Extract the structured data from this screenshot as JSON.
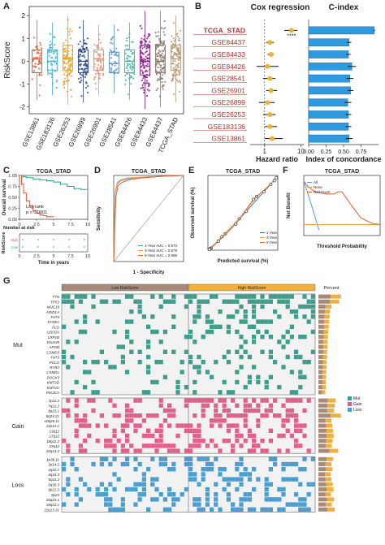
{
  "panel_labels": {
    "A": "A",
    "B": "B",
    "C": "C",
    "D": "D",
    "E": "E",
    "F": "F",
    "G": "G"
  },
  "chart_data": [
    {
      "id": "A",
      "type": "boxplot",
      "ylabel": "RiskScore",
      "ylim": [
        -2.3,
        2.4
      ],
      "yticks": [
        -2,
        -1,
        0,
        1,
        2
      ],
      "categories": [
        "GSE13861",
        "GSE183136",
        "GSE26253",
        "GSE26899",
        "GSE26901",
        "GSE28541",
        "GSE84426",
        "GSE84433",
        "GSE84437",
        "TCGA_STAD"
      ],
      "colors": [
        "#e05a3a",
        "#4bb3d0",
        "#e8a020",
        "#2e4a88",
        "#e8907a",
        "#5a8fc8",
        "#40b8a0",
        "#8b1a8b",
        "#8a7a6a",
        "#b89a7a"
      ],
      "boxes": [
        {
          "q1": -0.5,
          "median": 0.1,
          "q3": 0.5,
          "lo": -1.7,
          "hi": 1.8,
          "n": 45
        },
        {
          "q1": -0.4,
          "median": 0.0,
          "q3": 0.5,
          "lo": -1.5,
          "hi": 1.7,
          "n": 55
        },
        {
          "q1": -0.4,
          "median": 0.1,
          "q3": 0.7,
          "lo": -1.9,
          "hi": 2.0,
          "n": 90
        },
        {
          "q1": -0.5,
          "median": 0.0,
          "q3": 0.5,
          "lo": -1.8,
          "hi": 1.8,
          "n": 80
        },
        {
          "q1": -0.4,
          "median": 0.1,
          "q3": 0.5,
          "lo": -1.5,
          "hi": 1.6,
          "n": 60
        },
        {
          "q1": -0.5,
          "median": -0.1,
          "q3": 0.4,
          "lo": -1.4,
          "hi": 1.6,
          "n": 35
        },
        {
          "q1": -0.5,
          "median": 0.0,
          "q3": 0.5,
          "lo": -1.7,
          "hi": 1.7,
          "n": 55
        },
        {
          "q1": -0.6,
          "median": 0.0,
          "q3": 0.7,
          "lo": -2.1,
          "hi": 2.2,
          "n": 110
        },
        {
          "q1": -0.5,
          "median": 0.0,
          "q3": 0.7,
          "lo": -2.0,
          "hi": 2.2,
          "n": 120
        },
        {
          "q1": -0.4,
          "median": 0.1,
          "q3": 0.7,
          "lo": -1.8,
          "hi": 2.0,
          "n": 110
        }
      ]
    },
    {
      "id": "B",
      "type": "forest_and_bar",
      "left_title": "Cox regression",
      "right_title": "C-index",
      "left_xlabel": "Hazard ratio",
      "right_xlabel": "Index of concordance",
      "left_xticks": [
        "1",
        "10"
      ],
      "right_xticks": [
        "0.00",
        "0.25",
        "0.50",
        "0.75"
      ],
      "cohorts": [
        "TCGA_STAD",
        "GSE84437",
        "GSE84433",
        "GSE84426",
        "GSE28541",
        "GSE26901",
        "GSE26899",
        "GSE26253",
        "GSE183136",
        "GSE13861"
      ],
      "hazard_ratio": [
        5.5,
        1.4,
        1.5,
        1.2,
        1.4,
        1.5,
        1.2,
        1.4,
        1.4,
        1.6
      ],
      "hr_lower": [
        3.5,
        1.1,
        1.2,
        0.6,
        0.9,
        1.1,
        0.7,
        0.9,
        1.0,
        1.0
      ],
      "hr_upper": [
        8.0,
        1.8,
        1.8,
        2.4,
        2.0,
        2.2,
        1.9,
        2.0,
        2.2,
        3.2
      ],
      "significance": [
        "****",
        "",
        "",
        "",
        "",
        "",
        "",
        "",
        "",
        ""
      ],
      "cindex": [
        0.94,
        0.58,
        0.57,
        0.62,
        0.59,
        0.6,
        0.56,
        0.57,
        0.57,
        0.58
      ],
      "cindex_err": [
        0.01,
        0.03,
        0.03,
        0.06,
        0.05,
        0.04,
        0.05,
        0.04,
        0.04,
        0.05
      ]
    },
    {
      "id": "C",
      "type": "km",
      "title": "TCGA_STAD",
      "ylabel": "Overall survival",
      "xlabel": "Time in years",
      "xticks": [
        "0",
        "2.5",
        "5",
        "7.5",
        "10"
      ],
      "yticks": [
        "0.00",
        "0.25",
        "0.50",
        "0.75",
        "1.00"
      ],
      "annotation": [
        "Log-rank",
        "p < 0.0001"
      ],
      "risk_title": "Number at risk",
      "risk_ylabel": "RiskScore",
      "risk_rows": [
        "High",
        "Low"
      ],
      "series": [
        {
          "name": "Low",
          "color": "#2aa198",
          "t": [
            0,
            0.5,
            1,
            2,
            3,
            4,
            5,
            6,
            7,
            8,
            9,
            10
          ],
          "s": [
            1.0,
            0.97,
            0.95,
            0.92,
            0.9,
            0.88,
            0.85,
            0.8,
            0.75,
            0.7,
            0.68,
            0.66
          ]
        },
        {
          "name": "High",
          "color": "#e05a3a",
          "t": [
            0,
            0.3,
            0.6,
            1,
            1.5,
            2,
            2.5,
            3,
            3.5,
            4,
            5
          ],
          "s": [
            1.0,
            0.8,
            0.6,
            0.42,
            0.3,
            0.2,
            0.14,
            0.1,
            0.08,
            0.06,
            0.05
          ]
        }
      ]
    },
    {
      "id": "D",
      "type": "roc",
      "title": "TCGA_STAD",
      "xlabel": "1 - Specificity",
      "ylabel": "Sensitivity",
      "legend": [
        "1-Year AUC = 0.973",
        "3-Year AUC = 0.979",
        "5-Year AUC = 0.966"
      ],
      "colors": [
        "#4a9fd4",
        "#f0a040",
        "#e06030"
      ],
      "series": [
        {
          "fpr": [
            0,
            0.02,
            0.05,
            0.1,
            0.2,
            0.4,
            0.7,
            1.0
          ],
          "tpr": [
            0,
            0.78,
            0.9,
            0.94,
            0.96,
            0.98,
            0.99,
            1.0
          ]
        },
        {
          "fpr": [
            0,
            0.02,
            0.05,
            0.1,
            0.2,
            0.4,
            0.7,
            1.0
          ],
          "tpr": [
            0,
            0.8,
            0.92,
            0.95,
            0.97,
            0.98,
            0.99,
            1.0
          ]
        },
        {
          "fpr": [
            0,
            0.03,
            0.06,
            0.12,
            0.22,
            0.4,
            0.7,
            1.0
          ],
          "tpr": [
            0,
            0.74,
            0.88,
            0.92,
            0.95,
            0.97,
            0.99,
            1.0
          ]
        }
      ]
    },
    {
      "id": "E",
      "type": "calibration",
      "title": "TCGA_STAD",
      "xlabel": "Predicted survival (%)",
      "ylabel": "Observed survival (%)",
      "legend": [
        "1-Year",
        "3-Year",
        "5-Year"
      ],
      "colors": [
        "#2e6fb0",
        "#e8a040",
        "#e06030"
      ],
      "series": [
        {
          "x": [
            0.05,
            0.25,
            0.55,
            0.8,
            0.98
          ],
          "y": [
            0.03,
            0.22,
            0.52,
            0.78,
            0.97
          ]
        },
        {
          "x": [
            0.03,
            0.2,
            0.45,
            0.7,
            0.95
          ],
          "y": [
            0.02,
            0.18,
            0.42,
            0.72,
            0.93
          ]
        },
        {
          "x": [
            0.02,
            0.15,
            0.4,
            0.65,
            0.9
          ],
          "y": [
            0.01,
            0.12,
            0.35,
            0.68,
            0.88
          ]
        }
      ]
    },
    {
      "id": "F",
      "type": "dca",
      "title": "TCGA_STAD",
      "xlabel": "Threshold Probability",
      "ylabel": "Net Benefit",
      "legend": [
        "All",
        "None",
        "RiskScore"
      ],
      "colors": [
        "#4a9fd4",
        "#f0a040",
        "#e06030"
      ],
      "series": [
        {
          "x": [
            0,
            0.1,
            0.2
          ],
          "y": [
            0.4,
            0.18,
            -0.05
          ]
        },
        {
          "x": [
            0,
            1
          ],
          "y": [
            0,
            0
          ]
        },
        {
          "x": [
            0,
            0.05,
            0.15,
            0.3,
            0.4,
            0.45,
            0.5,
            0.6,
            0.75,
            0.9,
            1.0
          ],
          "y": [
            0.4,
            0.35,
            0.3,
            0.28,
            0.28,
            0.3,
            0.3,
            0.2,
            0.06,
            0.01,
            0.0
          ]
        }
      ]
    },
    {
      "id": "G",
      "type": "heatmap",
      "groups": [
        "Low RiskScore",
        "High RiskScore"
      ],
      "group_colors": [
        "#a88a78",
        "#f0b040"
      ],
      "percent_label": "Percent",
      "legend": [
        "Mut",
        "Gain",
        "Loss"
      ],
      "legend_colors": [
        "#3d9e8c",
        "#e0608a",
        "#4a9ed0"
      ],
      "sections": [
        {
          "name": "Mut",
          "color": "#3d9e8c",
          "rows": [
            "TTN",
            "TP53",
            "MUC16",
            "ARID1A",
            "FAT4",
            "SYNE1",
            "FLG",
            "USH2A",
            "LRP1B",
            "DNAH5",
            "APOB",
            "CSMD3",
            "FAT3",
            "PCLO",
            "RYR2",
            "CSMD1",
            "DOCK3",
            "KMT2D",
            "KMT2C",
            "PIK3CA"
          ],
          "percent": [
            0.52,
            0.48,
            0.3,
            0.27,
            0.26,
            0.25,
            0.24,
            0.23,
            0.22,
            0.21,
            0.21,
            0.2,
            0.2,
            0.19,
            0.19,
            0.18,
            0.18,
            0.17,
            0.17,
            0.16
          ]
        },
        {
          "name": "Gain",
          "color": "#e0608a",
          "rows": [
            "7p11.2",
            "7q21.2",
            "8p23.1",
            "8q24.21",
            "10q26.11",
            "12p12.1",
            "13q12",
            "17q12",
            "18q11.2",
            "19q12",
            "20q13.2"
          ],
          "percent": [
            0.4,
            0.38,
            0.36,
            0.52,
            0.3,
            0.32,
            0.34,
            0.35,
            0.33,
            0.31,
            0.46
          ]
        },
        {
          "name": "Loss",
          "color": "#4a9ed0",
          "rows": [
            "1p36.11",
            "3p14.2",
            "4q22.1",
            "4q34.3",
            "5q11.2",
            "5q35.3",
            "9p21.3",
            "9p23",
            "16q23.1",
            "18q22.1",
            "22q13.31"
          ],
          "percent": [
            0.34,
            0.3,
            0.32,
            0.28,
            0.3,
            0.33,
            0.35,
            0.29,
            0.36,
            0.31,
            0.38
          ]
        }
      ],
      "n_cols": 60
    }
  ]
}
